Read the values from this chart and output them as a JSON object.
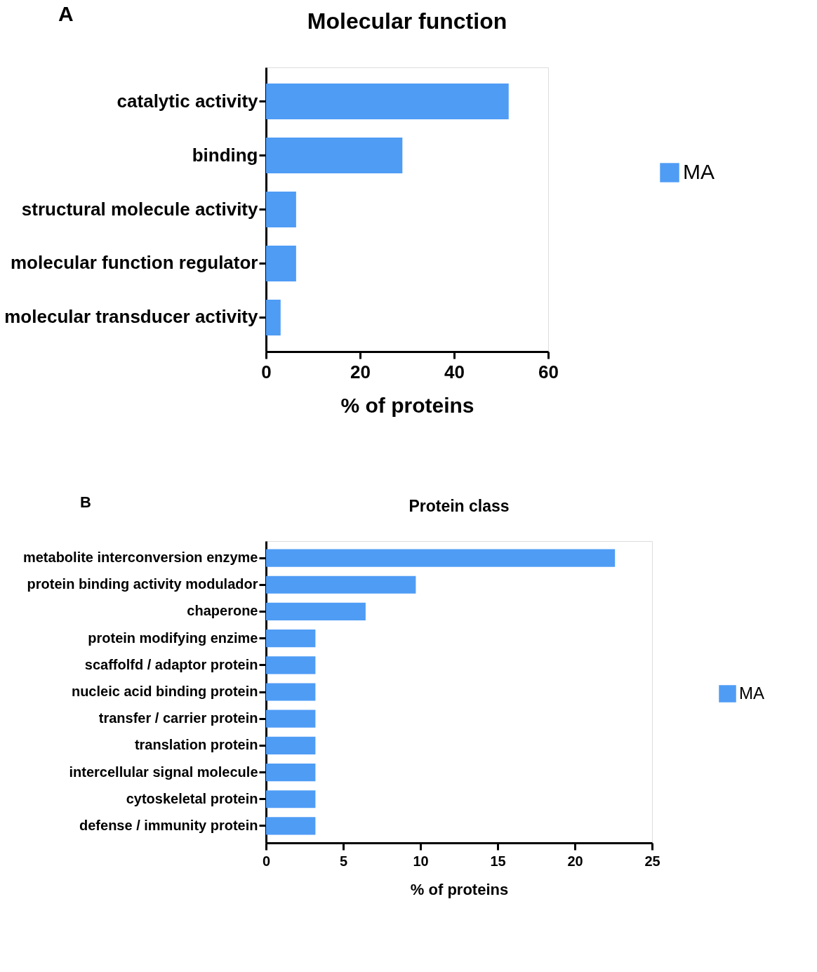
{
  "chart_data": [
    {
      "type": "bar",
      "orientation": "horizontal",
      "title": "Molecular function",
      "annotations": [
        "A"
      ],
      "xlabel": "% of proteins",
      "categories": [
        "catalytic activity",
        "binding",
        "structural molecule activity",
        "molecular function regulator",
        "molecular transducer activity"
      ],
      "series": [
        {
          "name": "MA",
          "color": "#4f9cf5",
          "values": [
            51.6,
            29.0,
            6.4,
            6.4,
            3.1
          ]
        }
      ],
      "xlim": [
        0,
        60
      ],
      "xticks": [
        0,
        20,
        40,
        60
      ],
      "grid": false,
      "legend": "right"
    },
    {
      "type": "bar",
      "orientation": "horizontal",
      "title": "Protein class",
      "annotations": [
        "B"
      ],
      "xlabel": "% of proteins",
      "categories": [
        "metabolite interconversion enzyme",
        "protein binding activity modulador",
        "chaperone",
        "protein modifying enzime",
        "scaffolfd / adaptor protein",
        "nucleic acid binding protein",
        "transfer / carrier protein",
        "translation protein",
        "intercellular signal molecule",
        "cytoskeletal protein",
        "defense / immunity protein"
      ],
      "series": [
        {
          "name": "MA",
          "color": "#4f9cf5",
          "values": [
            22.6,
            9.7,
            6.45,
            3.2,
            3.2,
            3.2,
            3.2,
            3.2,
            3.2,
            3.2,
            3.2
          ]
        }
      ],
      "xlim": [
        0,
        25
      ],
      "xticks": [
        0,
        5,
        10,
        15,
        20,
        25
      ],
      "grid": false,
      "legend": "right"
    }
  ]
}
